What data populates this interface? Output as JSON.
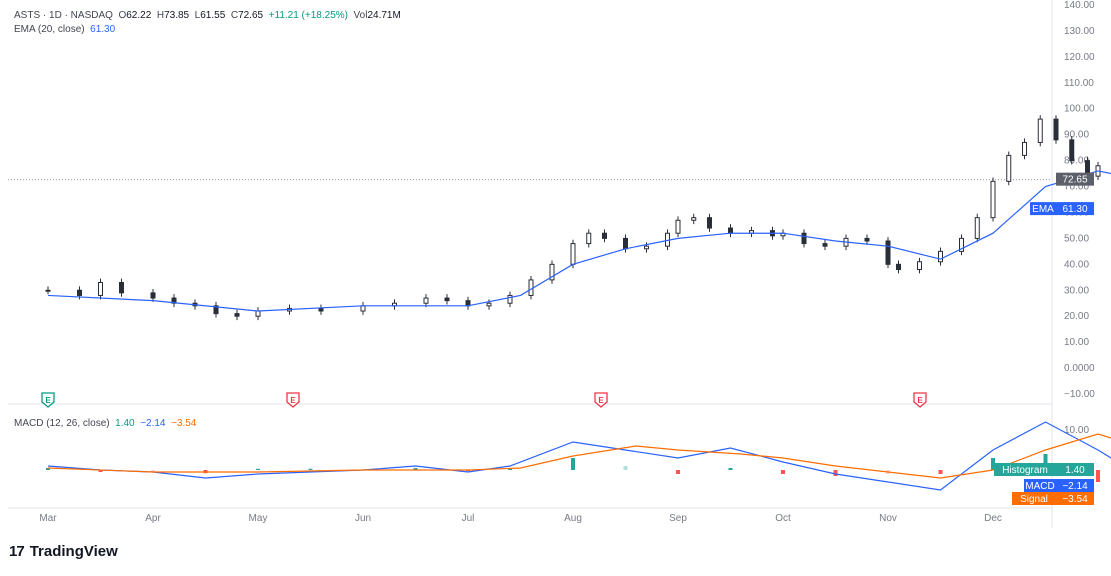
{
  "header": {
    "symbol": "ASTS · 1D · NASDAQ",
    "open_label": "O",
    "open": "62.22",
    "high_label": "H",
    "high": "73.85",
    "low_label": "L",
    "low": "61.55",
    "close_label": "C",
    "close": "72.65",
    "change": "+11.21 (+18.25%)",
    "vol_label": "Vol",
    "volume": "24.71M",
    "ema_label": "EMA (20, close)",
    "ema_value": "61.30"
  },
  "macd_header": {
    "label": "MACD (12, 26, close)",
    "hist": "1.40",
    "macd": "−2.14",
    "signal": "−3.54"
  },
  "price_badges": {
    "last": "72.65",
    "ema_tag": "EMA",
    "ema": "61.30"
  },
  "macd_badges": {
    "hist_tag": "Histogram",
    "hist": "1.40",
    "macd_tag": "MACD",
    "macd": "−2.14",
    "signal_tag": "Signal",
    "signal": "−3.54"
  },
  "earnings_markers": [
    "E",
    "E",
    "E",
    "E"
  ],
  "brand": {
    "name": "TradingView",
    "mark": "17"
  },
  "colors": {
    "up": "#089981",
    "down": "#f23645",
    "candle": "#2a2e39",
    "ema": "#2962ff",
    "macd": "#2962ff",
    "signal": "#ff6d00",
    "hist_up": "#26a69a",
    "hist_up_light": "#b2dfdb",
    "hist_down": "#ff5252",
    "hist_down_light": "#ffcdd2"
  },
  "chart_data": [
    {
      "type": "candlestick",
      "title": "ASTS · 1D · NASDAQ",
      "x_labels": [
        "Mar",
        "Apr",
        "May",
        "Jun",
        "Jul",
        "Aug",
        "Sep",
        "Oct",
        "Nov",
        "Dec"
      ],
      "y_ticks": [
        "140.00",
        "130.00",
        "120.00",
        "110.00",
        "100.00",
        "90.00",
        "80.00",
        "70.00",
        "60.00",
        "50.00",
        "40.00",
        "30.00",
        "20.00",
        "10.00",
        "0.0000",
        "−10.00"
      ],
      "ylim": [
        -10,
        140
      ],
      "grid": false,
      "close_series": [
        {
          "m": 1,
          "c": 30
        },
        {
          "m": 1.3,
          "c": 28
        },
        {
          "m": 1.5,
          "c": 33
        },
        {
          "m": 1.7,
          "c": 29
        },
        {
          "m": 2,
          "c": 27
        },
        {
          "m": 2.2,
          "c": 25
        },
        {
          "m": 2.4,
          "c": 24
        },
        {
          "m": 2.6,
          "c": 21
        },
        {
          "m": 2.8,
          "c": 20
        },
        {
          "m": 3,
          "c": 22
        },
        {
          "m": 3.3,
          "c": 23
        },
        {
          "m": 3.6,
          "c": 22
        },
        {
          "m": 4,
          "c": 24
        },
        {
          "m": 4.3,
          "c": 25
        },
        {
          "m": 4.6,
          "c": 27
        },
        {
          "m": 4.8,
          "c": 26
        },
        {
          "m": 5,
          "c": 24
        },
        {
          "m": 5.2,
          "c": 25
        },
        {
          "m": 5.4,
          "c": 28
        },
        {
          "m": 5.6,
          "c": 34
        },
        {
          "m": 5.8,
          "c": 40
        },
        {
          "m": 6,
          "c": 48
        },
        {
          "m": 6.15,
          "c": 52
        },
        {
          "m": 6.3,
          "c": 50
        },
        {
          "m": 6.5,
          "c": 46
        },
        {
          "m": 6.7,
          "c": 47
        },
        {
          "m": 6.9,
          "c": 52
        },
        {
          "m": 7,
          "c": 57
        },
        {
          "m": 7.15,
          "c": 58
        },
        {
          "m": 7.3,
          "c": 54
        },
        {
          "m": 7.5,
          "c": 52
        },
        {
          "m": 7.7,
          "c": 53
        },
        {
          "m": 7.9,
          "c": 51
        },
        {
          "m": 8,
          "c": 52
        },
        {
          "m": 8.2,
          "c": 48
        },
        {
          "m": 8.4,
          "c": 47
        },
        {
          "m": 8.6,
          "c": 50
        },
        {
          "m": 8.8,
          "c": 49
        },
        {
          "m": 9,
          "c": 40
        },
        {
          "m": 9.1,
          "c": 38
        },
        {
          "m": 9.3,
          "c": 41
        },
        {
          "m": 9.5,
          "c": 45
        },
        {
          "m": 9.7,
          "c": 50
        },
        {
          "m": 9.85,
          "c": 58
        },
        {
          "m": 10,
          "c": 72
        },
        {
          "m": 10.15,
          "c": 82
        },
        {
          "m": 10.3,
          "c": 87
        },
        {
          "m": 10.45,
          "c": 96
        },
        {
          "m": 10.6,
          "c": 88
        },
        {
          "m": 10.75,
          "c": 80
        },
        {
          "m": 10.9,
          "c": 74
        },
        {
          "m": 11,
          "c": 78
        },
        {
          "m": 11.15,
          "c": 80
        },
        {
          "m": 11.3,
          "c": 76
        },
        {
          "m": 11.45,
          "c": 68
        },
        {
          "m": 11.6,
          "c": 64
        },
        {
          "m": 11.75,
          "c": 60
        },
        {
          "m": 11.9,
          "c": 56
        },
        {
          "m": 12,
          "c": 54
        },
        {
          "m": 12.1,
          "c": 52
        },
        {
          "m": 12.2,
          "c": 55
        },
        {
          "m": 12.3,
          "c": 57
        },
        {
          "m": 12.35,
          "c": 61
        },
        {
          "m": 12.45,
          "c": 72.65
        }
      ],
      "ema_series": [
        {
          "m": 1,
          "v": 28
        },
        {
          "m": 2,
          "v": 26
        },
        {
          "m": 3,
          "v": 22
        },
        {
          "m": 4,
          "v": 24
        },
        {
          "m": 5,
          "v": 24
        },
        {
          "m": 5.5,
          "v": 28
        },
        {
          "m": 6,
          "v": 40
        },
        {
          "m": 6.5,
          "v": 46
        },
        {
          "m": 7,
          "v": 50
        },
        {
          "m": 7.5,
          "v": 52
        },
        {
          "m": 8,
          "v": 52
        },
        {
          "m": 8.5,
          "v": 49
        },
        {
          "m": 9,
          "v": 47
        },
        {
          "m": 9.5,
          "v": 42
        },
        {
          "m": 10,
          "v": 52
        },
        {
          "m": 10.5,
          "v": 70
        },
        {
          "m": 11,
          "v": 76
        },
        {
          "m": 11.5,
          "v": 72
        },
        {
          "m": 12,
          "v": 64
        },
        {
          "m": 12.45,
          "v": 61.3
        }
      ]
    },
    {
      "type": "line",
      "title": "MACD (12, 26, close)",
      "series": [
        {
          "name": "MACD",
          "points": [
            {
              "m": 1,
              "v": 1
            },
            {
              "m": 1.5,
              "v": 0
            },
            {
              "m": 2,
              "v": -0.5
            },
            {
              "m": 2.5,
              "v": -2
            },
            {
              "m": 3,
              "v": -1
            },
            {
              "m": 3.5,
              "v": -0.5
            },
            {
              "m": 4,
              "v": 0
            },
            {
              "m": 4.5,
              "v": 1
            },
            {
              "m": 5,
              "v": -0.5
            },
            {
              "m": 5.4,
              "v": 1
            },
            {
              "m": 6,
              "v": 7
            },
            {
              "m": 6.5,
              "v": 5
            },
            {
              "m": 7,
              "v": 3
            },
            {
              "m": 7.5,
              "v": 5.5
            },
            {
              "m": 8,
              "v": 2
            },
            {
              "m": 8.5,
              "v": -1
            },
            {
              "m": 9,
              "v": -3
            },
            {
              "m": 9.5,
              "v": -5
            },
            {
              "m": 10,
              "v": 5
            },
            {
              "m": 10.5,
              "v": 12
            },
            {
              "m": 11,
              "v": 5
            },
            {
              "m": 11.5,
              "v": -3
            },
            {
              "m": 12,
              "v": -7
            },
            {
              "m": 12.45,
              "v": -2.14
            }
          ]
        },
        {
          "name": "Signal",
          "points": [
            {
              "m": 1,
              "v": 0.5
            },
            {
              "m": 2,
              "v": -0.5
            },
            {
              "m": 3,
              "v": -0.5
            },
            {
              "m": 4,
              "v": 0
            },
            {
              "m": 5,
              "v": 0
            },
            {
              "m": 5.5,
              "v": 0.5
            },
            {
              "m": 6,
              "v": 3.5
            },
            {
              "m": 6.6,
              "v": 6
            },
            {
              "m": 7,
              "v": 5
            },
            {
              "m": 7.6,
              "v": 4
            },
            {
              "m": 8,
              "v": 3
            },
            {
              "m": 8.5,
              "v": 1
            },
            {
              "m": 9,
              "v": -0.5
            },
            {
              "m": 9.5,
              "v": -2
            },
            {
              "m": 10,
              "v": 0
            },
            {
              "m": 10.5,
              "v": 5
            },
            {
              "m": 11,
              "v": 9
            },
            {
              "m": 11.5,
              "v": 5
            },
            {
              "m": 12,
              "v": -1
            },
            {
              "m": 12.45,
              "v": -3.54
            }
          ]
        }
      ],
      "histogram": [
        {
          "m": 1,
          "v": 0.5
        },
        {
          "m": 1.5,
          "v": -0.5
        },
        {
          "m": 2,
          "v": -0.4
        },
        {
          "m": 2.5,
          "v": -0.8
        },
        {
          "m": 3,
          "v": 0.3
        },
        {
          "m": 3.5,
          "v": 0.3
        },
        {
          "m": 4,
          "v": 0.2
        },
        {
          "m": 4.5,
          "v": 0.5
        },
        {
          "m": 5,
          "v": -0.3
        },
        {
          "m": 5.4,
          "v": 0.5
        },
        {
          "m": 6,
          "v": 3
        },
        {
          "m": 6.5,
          "v": 1
        },
        {
          "m": 7,
          "v": -1
        },
        {
          "m": 7.5,
          "v": 0.5
        },
        {
          "m": 8,
          "v": -1
        },
        {
          "m": 8.5,
          "v": -1.5
        },
        {
          "m": 9,
          "v": -1
        },
        {
          "m": 9.5,
          "v": -1
        },
        {
          "m": 10,
          "v": 3
        },
        {
          "m": 10.5,
          "v": 4
        },
        {
          "m": 11,
          "v": -3
        },
        {
          "m": 11.5,
          "v": -3.5
        },
        {
          "m": 12,
          "v": -2
        },
        {
          "m": 12.45,
          "v": 1.4
        }
      ],
      "y_ticks": [
        "10.00"
      ],
      "ylim": [
        -12,
        15
      ]
    }
  ]
}
